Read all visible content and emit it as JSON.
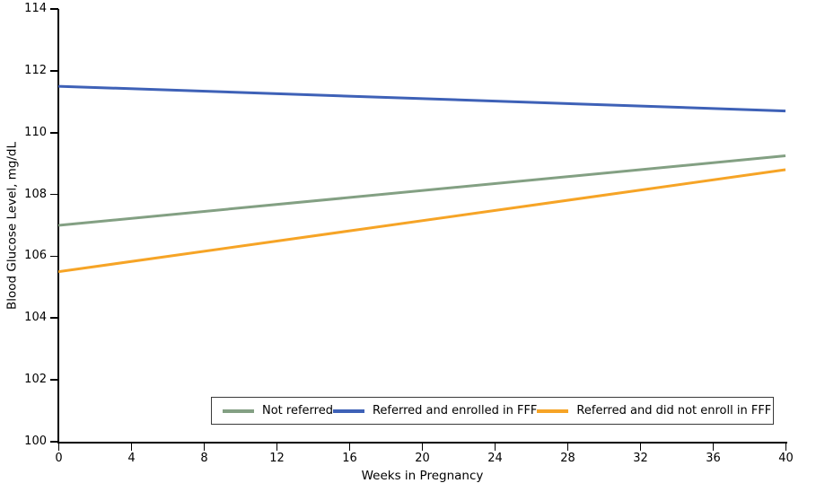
{
  "chart_data": {
    "type": "line",
    "title": "",
    "xlabel": "Weeks in Pregnancy",
    "ylabel": "Blood Glucose Level, mg/dL",
    "xlim": [
      0,
      40
    ],
    "ylim": [
      100,
      114
    ],
    "xticks": [
      0,
      4,
      8,
      12,
      16,
      20,
      24,
      28,
      32,
      36,
      40
    ],
    "yticks": [
      100,
      102,
      104,
      106,
      108,
      110,
      112,
      114
    ],
    "grid": false,
    "legend_position": "bottom-boxed",
    "axis_color": "#000000",
    "series": [
      {
        "name": "Not referred",
        "color": "#83A083",
        "x": [
          0,
          40
        ],
        "y": [
          107.0,
          109.25
        ]
      },
      {
        "name": "Referred and enrolled in FFF",
        "color": "#3E61B7",
        "x": [
          0,
          40
        ],
        "y": [
          111.5,
          110.7
        ]
      },
      {
        "name": "Referred and did not enroll in FFF",
        "color": "#F6A426",
        "x": [
          0,
          40
        ],
        "y": [
          105.5,
          108.8
        ]
      }
    ]
  }
}
